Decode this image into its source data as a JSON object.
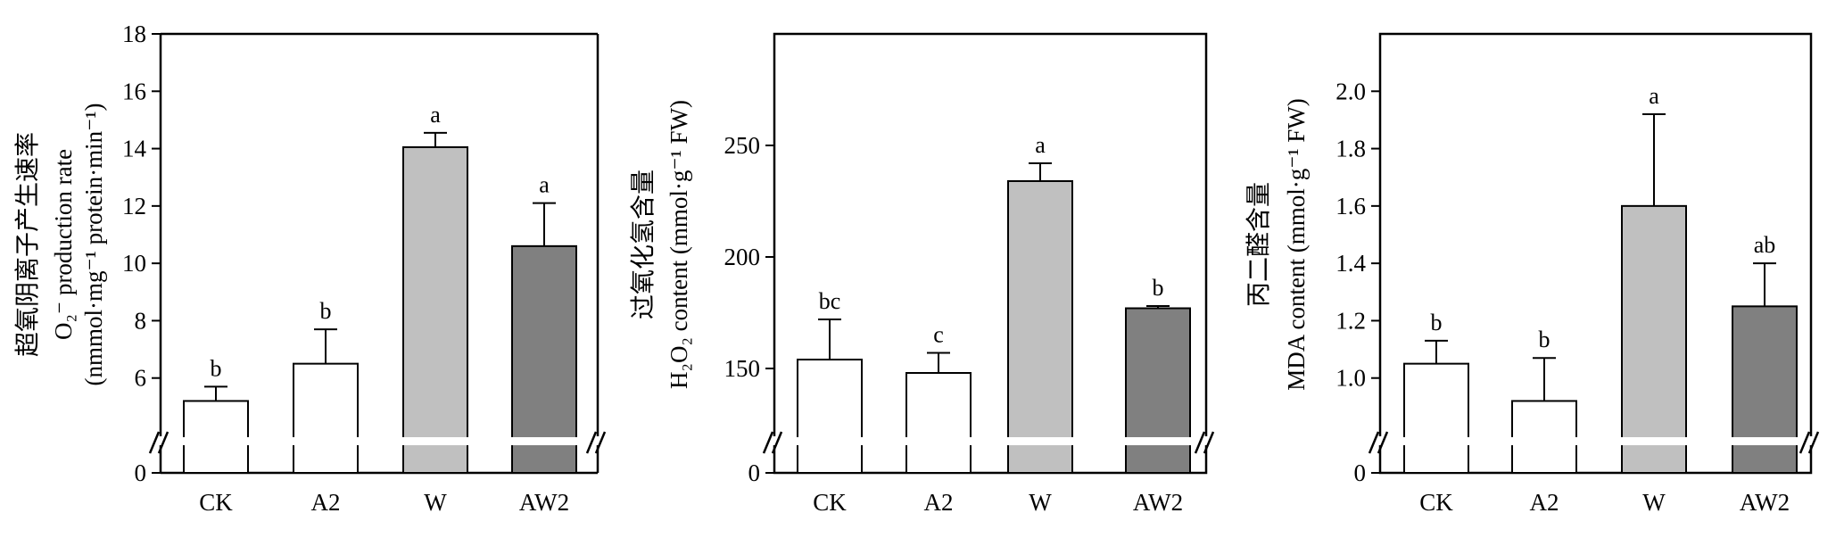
{
  "chart_data": [
    {
      "type": "bar",
      "categories": [
        "CK",
        "A2",
        "W",
        "AW2"
      ],
      "values": [
        5.2,
        6.5,
        14.05,
        10.6
      ],
      "errors": [
        0.5,
        1.2,
        0.5,
        1.5
      ],
      "significance": [
        "b",
        "b",
        "a",
        "a"
      ],
      "colors": [
        "#ffffff",
        "#ffffff",
        "#c0c0c0",
        "#808080"
      ],
      "ylabel_lines": [
        "超氧阴离子产生速率",
        "O2- production rate",
        "(nmmol·mg-1 protein·min-1)"
      ],
      "ylabel_cn": "超氧阴离子产生速率",
      "ylabel_en1": "O₂⁻ production rate",
      "ylabel_en2": "(nmmol·mg⁻¹ protein·min⁻¹)",
      "yticks": [
        0,
        6,
        8,
        10,
        12,
        14,
        16,
        18
      ],
      "ylim_upper": [
        4,
        18
      ],
      "axis_break": true,
      "grid": false
    },
    {
      "type": "bar",
      "categories": [
        "CK",
        "A2",
        "W",
        "AW2"
      ],
      "values": [
        154,
        148,
        234,
        177
      ],
      "errors": [
        18,
        9,
        8,
        1
      ],
      "significance": [
        "bc",
        "c",
        "a",
        "b"
      ],
      "colors": [
        "#ffffff",
        "#ffffff",
        "#c0c0c0",
        "#808080"
      ],
      "ylabel_cn": "过氧化氢含量",
      "ylabel_en1": "H₂O₂ content (mmol·g⁻¹ FW)",
      "yticks": [
        0,
        150,
        200,
        250
      ],
      "ylim_upper": [
        120,
        300
      ],
      "axis_break": true,
      "grid": false
    },
    {
      "type": "bar",
      "categories": [
        "CK",
        "A2",
        "W",
        "AW2"
      ],
      "values": [
        1.05,
        0.92,
        1.6,
        1.25
      ],
      "errors": [
        0.08,
        0.15,
        0.32,
        0.15
      ],
      "significance": [
        "b",
        "b",
        "a",
        "ab"
      ],
      "colors": [
        "#ffffff",
        "#ffffff",
        "#c0c0c0",
        "#808080"
      ],
      "ylabel_cn": "丙二醛含量",
      "ylabel_en1": "MDA content (mmol·g⁻¹ FW)",
      "yticks": [
        0,
        1.0,
        1.2,
        1.4,
        1.6,
        1.8,
        2.0
      ],
      "ylim_upper": [
        0.8,
        2.2
      ],
      "axis_break": true,
      "grid": false
    }
  ]
}
